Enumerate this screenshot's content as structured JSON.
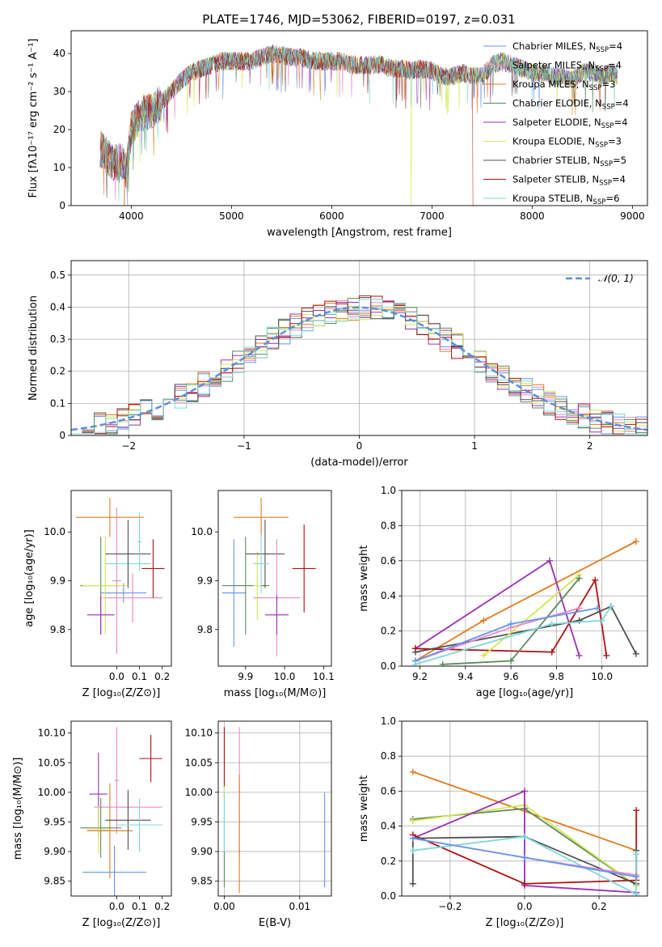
{
  "figure_title": "PLATE=1746, MJD=53062, FIBERID=0197, z=0.031",
  "colors": {
    "chab_miles": "#6495ED",
    "salp_miles": "#E888C8",
    "krou_miles": "#E07B20",
    "chab_elodie": "#5C8A5C",
    "salp_elodie": "#9B30B0",
    "krou_elodie": "#D4E650",
    "chab_stelib": "#505050",
    "salp_stelib": "#B01010",
    "krou_stelib": "#7FD8D8",
    "grid": "#b0b0b0",
    "gauss": "#5B8FD8"
  },
  "chart_data": [
    {
      "id": "spectrum",
      "type": "line",
      "title": "PLATE=1746, MJD=53062, FIBERID=0197, z=0.031",
      "xlabel": "wavelength [Angstrom, rest frame]",
      "ylabel": "Flux [fλ10⁻¹⁷ erg cm⁻² s⁻¹ A⁻¹]",
      "xlim": [
        3400,
        9150
      ],
      "ylim": [
        0,
        46
      ],
      "xticks": [
        4000,
        5000,
        6000,
        7000,
        8000,
        9000
      ],
      "yticks": [
        0,
        10,
        20,
        30,
        40
      ],
      "grid": false,
      "legend_position": "top-right",
      "legend": [
        {
          "key": "chab_miles",
          "label": "Chabrier MILES, N",
          "sub": "SSP",
          "val": "=4"
        },
        {
          "key": "salp_miles",
          "label": "Salpeter MILES, N",
          "sub": "SSP",
          "val": "=4"
        },
        {
          "key": "krou_miles",
          "label": "Kroupa MILES, N",
          "sub": "SSP",
          "val": "=3"
        },
        {
          "key": "chab_elodie",
          "label": "Chabrier ELODIE, N",
          "sub": "SSP",
          "val": "=4"
        },
        {
          "key": "salp_elodie",
          "label": "Salpeter ELODIE, N",
          "sub": "SSP",
          "val": "=4"
        },
        {
          "key": "krou_elodie",
          "label": "Kroupa ELODIE, N",
          "sub": "SSP",
          "val": "=3"
        },
        {
          "key": "chab_stelib",
          "label": "Chabrier STELIB, N",
          "sub": "SSP",
          "val": "=5"
        },
        {
          "key": "salp_stelib",
          "label": "Salpeter STELIB, N",
          "sub": "SSP",
          "val": "=4"
        },
        {
          "key": "krou_stelib",
          "label": "Kroupa STELIB, N",
          "sub": "SSP",
          "val": "=6"
        }
      ],
      "continuum": [
        [
          3690,
          15
        ],
        [
          3760,
          13
        ],
        [
          3830,
          11
        ],
        [
          3900,
          12
        ],
        [
          3950,
          9
        ],
        [
          4000,
          20
        ],
        [
          4100,
          24
        ],
        [
          4200,
          25
        ],
        [
          4300,
          27
        ],
        [
          4400,
          30
        ],
        [
          4500,
          33
        ],
        [
          4600,
          35
        ],
        [
          4700,
          36
        ],
        [
          4800,
          37
        ],
        [
          4900,
          38
        ],
        [
          5000,
          38
        ],
        [
          5100,
          38
        ],
        [
          5200,
          38
        ],
        [
          5300,
          39
        ],
        [
          5400,
          40
        ],
        [
          5500,
          39.5
        ],
        [
          5600,
          39
        ],
        [
          5700,
          39
        ],
        [
          5800,
          38
        ],
        [
          5900,
          38
        ],
        [
          6000,
          38
        ],
        [
          6100,
          38
        ],
        [
          6200,
          37
        ],
        [
          6300,
          37
        ],
        [
          6400,
          37
        ],
        [
          6500,
          37
        ],
        [
          6600,
          36
        ],
        [
          6700,
          36
        ],
        [
          6800,
          35.5
        ],
        [
          6900,
          36
        ],
        [
          7000,
          35.5
        ],
        [
          7100,
          34
        ],
        [
          7200,
          34
        ],
        [
          7300,
          35
        ],
        [
          7400,
          34
        ],
        [
          7500,
          34
        ],
        [
          7600,
          37
        ],
        [
          7700,
          38
        ],
        [
          7800,
          37
        ],
        [
          7900,
          36
        ],
        [
          8000,
          35
        ],
        [
          8100,
          35
        ],
        [
          8200,
          34
        ],
        [
          8300,
          34
        ],
        [
          8400,
          33
        ],
        [
          8500,
          35
        ],
        [
          8600,
          35
        ],
        [
          8700,
          34
        ],
        [
          8800,
          35
        ],
        [
          8850,
          34
        ]
      ],
      "dropouts": [
        {
          "key": "krou_miles",
          "x": 3930
        },
        {
          "key": "krou_elodie",
          "x": 6790
        },
        {
          "key": "salp_stelib",
          "x": 7410
        }
      ]
    },
    {
      "id": "residuals",
      "type": "step",
      "xlabel": "(data-model)/error",
      "ylabel": "Normed distribution",
      "xlim": [
        -2.5,
        2.5
      ],
      "ylim": [
        0,
        0.545
      ],
      "xticks": [
        -2,
        -1,
        0,
        1,
        2
      ],
      "yticks": [
        0.0,
        0.1,
        0.2,
        0.3,
        0.4,
        0.5
      ],
      "grid": true,
      "legend_position": "top-right",
      "gauss_label": "𝒩(0, 1)",
      "bin_width": 0.1
    },
    {
      "id": "z-vs-age",
      "type": "errorbar",
      "xlabel": "Z [log₁₀(Z/Z⊙)]",
      "ylabel": "age  [log₁₀(age/yr)]",
      "xlim": [
        -0.2,
        0.24
      ],
      "ylim": [
        9.725,
        10.085
      ],
      "xticks": [
        0.0,
        0.1,
        0.2
      ],
      "xticklabels": [
        "0.0",
        "0.1",
        "0.2"
      ],
      "yticks": [
        9.8,
        9.9,
        10.0
      ],
      "yticklabels": [
        "9.8",
        "9.9",
        "10.0"
      ],
      "grid": false,
      "points": [
        {
          "key": "krou_miles",
          "x": -0.03,
          "xerr": 0.15,
          "y": 10.03,
          "yerr": 0.04
        },
        {
          "key": "salp_miles",
          "x": 0.0,
          "xerr": 0.02,
          "y": 9.9,
          "yerr": 0.15
        },
        {
          "key": "chab_miles",
          "x": 0.03,
          "xerr": 0.1,
          "y": 9.875,
          "yerr": 0.02
        },
        {
          "key": "salp_miles",
          "x": 0.07,
          "xerr": 0.13,
          "y": 9.865,
          "yerr": 0.05
        },
        {
          "key": "krou_stelib",
          "x": 0.05,
          "xerr": 0.1,
          "y": 9.935,
          "yerr": 0.035
        },
        {
          "key": "chab_stelib",
          "x": 0.05,
          "xerr": 0.1,
          "y": 9.955,
          "yerr": 0.07
        },
        {
          "key": "salp_stelib",
          "x": 0.16,
          "xerr": 0.05,
          "y": 9.925,
          "yerr": 0.06
        },
        {
          "key": "chab_elodie",
          "x": -0.07,
          "xerr": 0.09,
          "y": 9.89,
          "yerr": 0.1
        },
        {
          "key": "krou_elodie",
          "x": -0.05,
          "xerr": 0.1,
          "y": 9.89,
          "yerr": 0.1
        },
        {
          "key": "salp_elodie",
          "x": -0.07,
          "xerr": 0.06,
          "y": 9.83,
          "yerr": 0.04
        },
        {
          "key": "krou_stelib",
          "x": 0.1,
          "xerr": 0.01,
          "y": 9.98,
          "yerr": 0.06
        }
      ]
    },
    {
      "id": "mass-vs-age",
      "type": "errorbar",
      "xlabel": "mass [log₁₀(M/M⊙)]",
      "ylabel": "",
      "xlim": [
        9.83,
        10.12
      ],
      "ylim": [
        9.725,
        10.085
      ],
      "xticks": [
        9.9,
        10.0,
        10.1
      ],
      "xticklabels": [
        "9.9",
        "10.0",
        "10.1"
      ],
      "yticks": [
        9.8,
        9.9,
        10.0
      ],
      "yticklabels": [
        "9.8",
        "9.9",
        "10.0"
      ],
      "grid": false,
      "points": [
        {
          "key": "krou_miles",
          "x": 9.94,
          "xerr": 0.07,
          "y": 10.03,
          "yerr": 0.04
        },
        {
          "key": "chab_miles",
          "x": 9.87,
          "xerr": 0.03,
          "y": 9.875,
          "yerr": 0.11
        },
        {
          "key": "chab_elodie",
          "x": 9.9,
          "xerr": 0.06,
          "y": 9.89,
          "yerr": 0.1
        },
        {
          "key": "krou_elodie",
          "x": 9.93,
          "xerr": 0.01,
          "y": 9.89,
          "yerr": 0.07
        },
        {
          "key": "chab_stelib",
          "x": 9.95,
          "xerr": 0.05,
          "y": 9.955,
          "yerr": 0.07
        },
        {
          "key": "krou_stelib",
          "x": 9.94,
          "xerr": 0.02,
          "y": 9.935,
          "yerr": 0.06
        },
        {
          "key": "salp_miles",
          "x": 9.98,
          "xerr": 0.06,
          "y": 9.865,
          "yerr": 0.12
        },
        {
          "key": "salp_elodie",
          "x": 9.98,
          "xerr": 0.03,
          "y": 9.83,
          "yerr": 0.04
        },
        {
          "key": "salp_stelib",
          "x": 10.05,
          "xerr": 0.03,
          "y": 9.925,
          "yerr": 0.09
        }
      ]
    },
    {
      "id": "weights-vs-age",
      "type": "line",
      "xlabel": "age  [log₁₀(age/yr)]",
      "ylabel": "mass weight",
      "xlim": [
        9.12,
        10.2
      ],
      "ylim": [
        0,
        1.0
      ],
      "xticks": [
        9.2,
        9.4,
        9.6,
        9.8,
        10.0
      ],
      "xticklabels": [
        "9.2",
        "9.4",
        "9.6",
        "9.8",
        "10.0"
      ],
      "yticks": [
        0.0,
        0.2,
        0.4,
        0.6,
        0.8,
        1.0
      ],
      "yticklabels": [
        "0.0",
        "0.2",
        "0.4",
        "0.6",
        "0.8",
        "1.0"
      ],
      "grid": true,
      "series": [
        {
          "key": "krou_miles",
          "x": [
            9.18,
            9.48,
            10.15
          ],
          "y": [
            0.03,
            0.26,
            0.71
          ]
        },
        {
          "key": "salp_elodie",
          "x": [
            9.18,
            9.77,
            9.9
          ],
          "y": [
            0.1,
            0.6,
            0.06
          ]
        },
        {
          "key": "salp_stelib",
          "x": [
            9.18,
            9.78,
            9.97,
            10.02
          ],
          "y": [
            0.1,
            0.08,
            0.49,
            0.06
          ]
        },
        {
          "key": "chab_stelib",
          "x": [
            9.18,
            9.9,
            10.04,
            10.15
          ],
          "y": [
            0.08,
            0.26,
            0.34,
            0.07
          ]
        },
        {
          "key": "krou_elodie",
          "x": [
            9.48,
            9.9
          ],
          "y": [
            0.06,
            0.52
          ]
        },
        {
          "key": "chab_elodie",
          "x": [
            9.3,
            9.6,
            9.9
          ],
          "y": [
            0.01,
            0.03,
            0.5
          ]
        },
        {
          "key": "salp_miles",
          "x": [
            9.18,
            9.6,
            9.9
          ],
          "y": [
            0.03,
            0.22,
            0.33
          ]
        },
        {
          "key": "chab_miles",
          "x": [
            9.18,
            9.6,
            9.98
          ],
          "y": [
            0.03,
            0.24,
            0.33
          ]
        },
        {
          "key": "krou_stelib",
          "x": [
            9.18,
            9.78,
            10.0,
            10.04
          ],
          "y": [
            0.01,
            0.24,
            0.26,
            0.34
          ]
        }
      ]
    },
    {
      "id": "z-vs-mass",
      "type": "errorbar",
      "xlabel": "Z [log₁₀(Z/Z⊙)]",
      "ylabel": "mass [log₁₀(M/M⊙)]",
      "xlim": [
        -0.2,
        0.24
      ],
      "ylim": [
        9.825,
        10.12
      ],
      "xticks": [
        0.0,
        0.1,
        0.2
      ],
      "xticklabels": [
        "0.0",
        "0.1",
        "0.2"
      ],
      "yticks": [
        9.85,
        9.9,
        9.95,
        10.0,
        10.05,
        10.1
      ],
      "yticklabels": [
        "9.85",
        "9.90",
        "9.95",
        "10.00",
        "10.05",
        "10.10"
      ],
      "grid": false,
      "points": [
        {
          "key": "salp_stelib",
          "x": 0.15,
          "xerr": 0.05,
          "y": 10.057,
          "yerr": 0.04
        },
        {
          "key": "salp_miles",
          "x": 0.0,
          "xerr": 0.01,
          "y": 10.02,
          "yerr": 0.09
        },
        {
          "key": "krou_miles",
          "x": -0.03,
          "xerr": 0.1,
          "y": 9.935,
          "yerr": 0.08
        },
        {
          "key": "salp_elodie",
          "x": -0.08,
          "xerr": 0.04,
          "y": 9.997,
          "yerr": 0.07
        },
        {
          "key": "salp_miles",
          "x": 0.05,
          "xerr": 0.15,
          "y": 9.975,
          "yerr": 0.03
        },
        {
          "key": "chab_stelib",
          "x": 0.05,
          "xerr": 0.1,
          "y": 9.953,
          "yerr": 0.05
        },
        {
          "key": "krou_stelib",
          "x": 0.1,
          "xerr": 0.1,
          "y": 9.945,
          "yerr": 0.045
        },
        {
          "key": "chab_elodie",
          "x": -0.07,
          "xerr": 0.09,
          "y": 9.94,
          "yerr": 0.05
        },
        {
          "key": "krou_elodie",
          "x": -0.08,
          "xerr": 0.05,
          "y": 9.937,
          "yerr": 0.04
        },
        {
          "key": "chab_miles",
          "x": -0.01,
          "xerr": 0.14,
          "y": 9.865,
          "yerr": 0.045
        }
      ]
    },
    {
      "id": "ebv-vs-mass",
      "type": "errorbar",
      "xlabel": "E(B-V)",
      "ylabel": "",
      "xlim": [
        -0.0008,
        0.0142
      ],
      "ylim": [
        9.825,
        10.12
      ],
      "xticks": [
        0.0,
        0.01
      ],
      "xticklabels": [
        "0.00",
        "0.01"
      ],
      "yticks": [
        9.85,
        9.9,
        9.95,
        10.0,
        10.05,
        10.1
      ],
      "yticklabels": [
        "9.85",
        "9.90",
        "9.95",
        "10.00",
        "10.05",
        "10.10"
      ],
      "grid": true,
      "points": [
        {
          "key": "salp_stelib",
          "x": 0.0,
          "xerr": 0,
          "y": 10.05,
          "yerr": 0.06
        },
        {
          "key": "krou_elodie",
          "x": 0.0,
          "xerr": 0,
          "y": 9.95,
          "yerr": 0.06
        },
        {
          "key": "chab_elodie",
          "x": 0.0,
          "xerr": 0,
          "y": 9.9,
          "yerr": 0.06
        },
        {
          "key": "krou_stelib",
          "x": 0.0,
          "xerr": 0,
          "y": 9.95,
          "yerr": 0.05
        },
        {
          "key": "salp_miles",
          "x": 0.002,
          "xerr": 0,
          "y": 10.0,
          "yerr": 0.11
        },
        {
          "key": "krou_miles",
          "x": 0.002,
          "xerr": 0,
          "y": 9.93,
          "yerr": 0.1
        },
        {
          "key": "chab_miles",
          "x": 0.0133,
          "xerr": 0,
          "y": 9.92,
          "yerr": 0.08
        }
      ]
    },
    {
      "id": "weights-vs-z",
      "type": "line",
      "xlabel": "Z [log₁₀(Z/Z⊙)]",
      "ylabel": "mass weight",
      "xlim": [
        -0.33,
        0.33
      ],
      "ylim": [
        0,
        1.0
      ],
      "xticks": [
        -0.2,
        0.0,
        0.2
      ],
      "xticklabels": [
        "−0.2",
        "0.0",
        "0.2"
      ],
      "yticks": [
        0.0,
        0.2,
        0.4,
        0.6,
        0.8,
        1.0
      ],
      "yticklabels": [
        "0.0",
        "0.2",
        "0.4",
        "0.6",
        "0.8",
        "1.0"
      ],
      "grid": true,
      "series": [
        {
          "key": "krou_miles",
          "x": [
            -0.3,
            0.3
          ],
          "y": [
            0.71,
            0.26
          ]
        },
        {
          "key": "chab_elodie",
          "x": [
            -0.3,
            0.0,
            0.3
          ],
          "y": [
            0.44,
            0.5,
            0.06
          ]
        },
        {
          "key": "krou_elodie",
          "x": [
            -0.3,
            0.0,
            0.3
          ],
          "y": [
            0.43,
            0.52,
            0.06
          ]
        },
        {
          "key": "salp_elodie",
          "x": [
            -0.3,
            0.0,
            0.0,
            0.3
          ],
          "y": [
            0.33,
            0.6,
            0.06,
            0.02
          ]
        },
        {
          "key": "salp_stelib",
          "x": [
            -0.3,
            0.0,
            0.3,
            0.3
          ],
          "y": [
            0.35,
            0.07,
            0.09,
            0.49
          ]
        },
        {
          "key": "chab_stelib",
          "x": [
            -0.3,
            -0.3,
            0.0,
            0.3,
            0.3
          ],
          "y": [
            0.07,
            0.33,
            0.34,
            0.07,
            0.26
          ]
        },
        {
          "key": "krou_stelib",
          "x": [
            -0.3,
            0.0,
            0.3,
            0.3
          ],
          "y": [
            0.26,
            0.34,
            0.01,
            0.24
          ]
        },
        {
          "key": "salp_miles",
          "x": [
            -0.3,
            0.0,
            0.3
          ],
          "y": [
            0.33,
            0.22,
            0.12
          ]
        },
        {
          "key": "chab_miles",
          "x": [
            -0.3,
            0.0,
            0.3
          ],
          "y": [
            0.33,
            0.22,
            0.11
          ]
        }
      ]
    }
  ]
}
